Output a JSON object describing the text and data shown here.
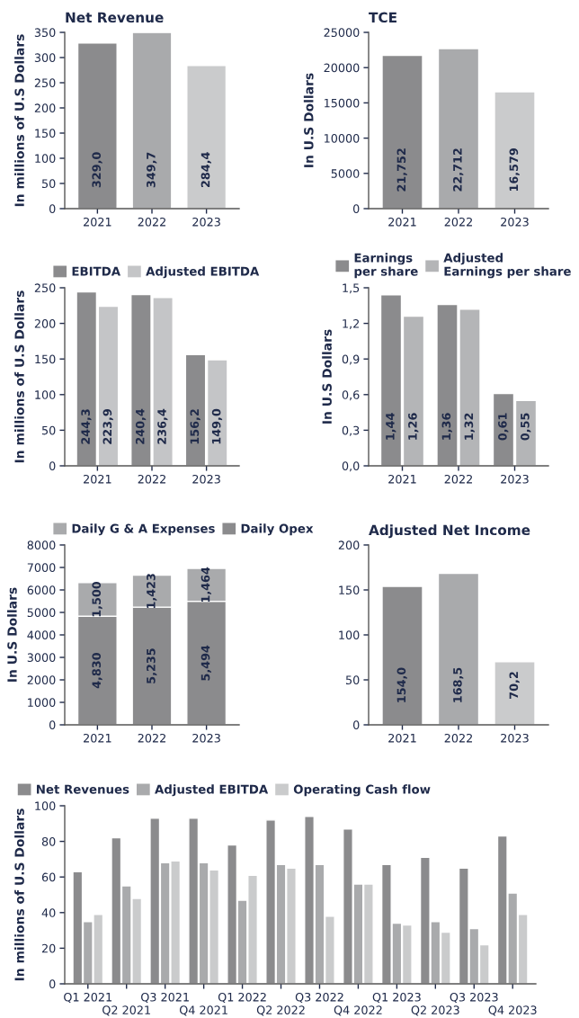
{
  "chart_data": [
    {
      "type": "bar",
      "title": "Net Revenue",
      "ylabel": "In millions of U.S Dollars",
      "categories": [
        "2021",
        "2022",
        "2023"
      ],
      "ylim": [
        0,
        350
      ],
      "yticks": [
        0,
        50,
        100,
        150,
        200,
        250,
        300,
        350
      ],
      "grid": false,
      "legend": false,
      "series": [
        {
          "colors": [
            "#8b8b8d",
            "#a9aaac",
            "#cacbcc"
          ],
          "values": [
            329.0,
            349.7,
            284.4
          ],
          "value_labels": [
            "329,0",
            "349,7",
            "284,4"
          ]
        }
      ]
    },
    {
      "type": "bar",
      "title": "TCE",
      "ylabel": "In U.S Dollars",
      "categories": [
        "2021",
        "2022",
        "2023"
      ],
      "ylim": [
        0,
        25000
      ],
      "yticks": [
        0,
        5000,
        10000,
        15000,
        20000,
        25000
      ],
      "grid": false,
      "legend": false,
      "series": [
        {
          "colors": [
            "#8b8b8d",
            "#a9aaac",
            "#cacbcc"
          ],
          "values": [
            21752,
            22712,
            16579
          ],
          "value_labels": [
            "21,752",
            "22,712",
            "16,579"
          ]
        }
      ]
    },
    {
      "type": "bar",
      "ylabel": "In millions of U.S Dollars",
      "categories": [
        "2021",
        "2022",
        "2023"
      ],
      "ylim": [
        0,
        250
      ],
      "yticks": [
        0,
        50,
        100,
        150,
        200,
        250
      ],
      "grid": false,
      "legend": "top",
      "series": [
        {
          "name": "EBITDA",
          "color": "#8b8b8d",
          "values": [
            244.3,
            240.4,
            156.2
          ],
          "value_labels": [
            "244,3",
            "240,4",
            "156,2"
          ]
        },
        {
          "name": "Adjusted EBITDA",
          "color": "#c4c5c7",
          "values": [
            223.9,
            236.4,
            149.0
          ],
          "value_labels": [
            "223,9",
            "236,4",
            "149,0"
          ]
        }
      ]
    },
    {
      "type": "bar",
      "ylabel": "In U.S Dollars",
      "categories": [
        "2021",
        "2022",
        "2023"
      ],
      "ylim": [
        0,
        1.5
      ],
      "yticks": [
        {
          "value": 0,
          "label": "0,0"
        },
        {
          "value": 0.3,
          "label": "0,3"
        },
        {
          "value": 0.6,
          "label": "0,6"
        },
        {
          "value": 0.9,
          "label": "0,9"
        },
        {
          "value": 1.2,
          "label": "1,2"
        },
        {
          "value": 1.5,
          "label": "1,5"
        }
      ],
      "grid": false,
      "legend": "top",
      "series": [
        {
          "name": "Earnings\nper share",
          "color": "#8b8b8d",
          "values": [
            1.44,
            1.36,
            0.61
          ],
          "value_labels": [
            "1,44",
            "1,36",
            "0,61"
          ]
        },
        {
          "name": "Adjusted\nEarnings per share",
          "color": "#b4b5b7",
          "values": [
            1.26,
            1.32,
            0.55
          ],
          "value_labels": [
            "1,26",
            "1,32",
            "0,55"
          ]
        }
      ]
    },
    {
      "type": "bar",
      "stacked": true,
      "ylabel": "In U.S Dollars",
      "categories": [
        "2021",
        "2022",
        "2023"
      ],
      "ylim": [
        0,
        8000
      ],
      "yticks": [
        0,
        1000,
        2000,
        3000,
        4000,
        5000,
        6000,
        7000,
        8000
      ],
      "grid": false,
      "legend": "top",
      "series": [
        {
          "name": "Daily Opex",
          "color": "#8b8b8d",
          "values": [
            4830,
            5235,
            5494
          ],
          "value_labels": [
            "4,830",
            "5,235",
            "5,494"
          ]
        },
        {
          "name": "Daily G & A Expenses",
          "color": "#a9aaac",
          "values": [
            1500,
            1423,
            1464
          ],
          "value_labels": [
            "1,500",
            "1,423",
            "1,464"
          ]
        }
      ]
    },
    {
      "type": "bar",
      "title": "Adjusted Net Income",
      "categories": [
        "2021",
        "2022",
        "2023"
      ],
      "ylim": [
        0,
        200
      ],
      "yticks": [
        0,
        50,
        100,
        150,
        200
      ],
      "grid": false,
      "legend": false,
      "series": [
        {
          "colors": [
            "#8b8b8d",
            "#a9aaac",
            "#cacbcc"
          ],
          "values": [
            154.0,
            168.5,
            70.2
          ],
          "value_labels": [
            "154,0",
            "168,5",
            "70,2"
          ]
        }
      ]
    },
    {
      "type": "bar",
      "ylabel": "In millions of U.S Dollars",
      "categories": [
        "Q1 2021",
        "Q2 2021",
        "Q3 2021",
        "Q4 2021",
        "Q1 2022",
        "Q2 2022",
        "Q3 2022",
        "Q4 2022",
        "Q1 2023",
        "Q2 2023",
        "Q3 2023",
        "Q4 2023"
      ],
      "ylim": [
        0,
        100
      ],
      "yticks": [
        0,
        20,
        40,
        60,
        80,
        100
      ],
      "grid": false,
      "legend": "top",
      "series": [
        {
          "name": "Net Revenues",
          "color": "#8b8b8d",
          "values": [
            63,
            82,
            93,
            93,
            78,
            92,
            94,
            87,
            67,
            71,
            65,
            83
          ]
        },
        {
          "name": "Adjusted EBITDA",
          "color": "#a9aaac",
          "values": [
            35,
            55,
            68,
            68,
            47,
            67,
            67,
            56,
            34,
            35,
            31,
            51
          ]
        },
        {
          "name": "Operating Cash flow",
          "color": "#cacbcc",
          "values": [
            39,
            48,
            69,
            64,
            61,
            65,
            38,
            56,
            33,
            29,
            22,
            39
          ]
        }
      ]
    }
  ]
}
